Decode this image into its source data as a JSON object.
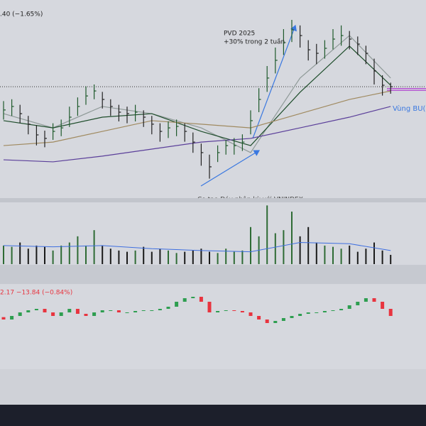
{
  "chart_data": [
    {
      "type": "ohlc",
      "title": ".40 (−1.65%)",
      "annotations": [
        "PVD 2025",
        "+30% trong 2 tuần",
        "Vùng BU(",
        "Co tạo Đáy phân kỳ với VNINDEX"
      ],
      "ylim": [
        20,
        30
      ],
      "close": [
        24.62,
        24.81,
        24.42,
        23.85,
        23.27,
        23.08,
        23.46,
        23.65,
        24.23,
        24.81,
        25.38,
        25.65,
        25.19,
        24.81,
        24.5,
        24.42,
        24.5,
        24.23,
        23.85,
        23.46,
        23.65,
        23.73,
        23.46,
        22.88,
        22.31,
        21.54,
        22.31,
        22.69,
        22.69,
        22.88,
        24.04,
        25.19,
        26.35,
        27.31,
        28.27,
        28.96,
        28.65,
        27.88,
        27.69,
        27.96,
        28.46,
        28.65,
        28.46,
        28.19,
        27.69,
        26.73,
        25.96,
        25.88
      ],
      "high": [
        25.1,
        25.2,
        24.9,
        24.3,
        23.8,
        23.5,
        23.9,
        24.1,
        24.8,
        25.3,
        25.9,
        26.0,
        25.6,
        25.2,
        24.9,
        24.8,
        24.9,
        24.6,
        24.3,
        23.9,
        24.0,
        24.1,
        23.9,
        23.4,
        22.8,
        22.2,
        22.7,
        23.0,
        23.1,
        23.3,
        24.6,
        25.8,
        27.0,
        28.0,
        29.0,
        29.5,
        29.2,
        28.4,
        28.2,
        28.4,
        29.0,
        29.2,
        28.9,
        28.6,
        28.1,
        27.4,
        26.5,
        26.1
      ],
      "low": [
        24.1,
        24.3,
        23.9,
        23.3,
        22.7,
        22.6,
        23.0,
        23.2,
        23.7,
        24.3,
        24.9,
        25.2,
        24.7,
        24.3,
        24.0,
        23.9,
        24.0,
        23.7,
        23.3,
        22.9,
        23.1,
        23.2,
        22.9,
        22.3,
        21.6,
        20.9,
        21.8,
        22.2,
        22.2,
        22.4,
        23.3,
        24.5,
        25.6,
        26.6,
        27.6,
        28.3,
        28.0,
        27.3,
        27.1,
        27.4,
        27.9,
        28.1,
        27.9,
        27.6,
        27.1,
        26.0,
        25.4,
        25.5
      ],
      "up_color": "#1f5a2c",
      "down_color": "#222222",
      "ma_x": [
        0,
        6,
        12,
        18,
        24,
        30,
        36,
        42,
        47
      ],
      "ma": [
        {
          "color": "#8f9a98",
          "values": [
            24.42,
            23.65,
            24.81,
            24.42,
            23.65,
            22.31,
            26.35,
            28.65,
            26.35
          ]
        },
        {
          "color": "#1e4d2b",
          "values": [
            24.04,
            23.65,
            24.23,
            24.42,
            23.46,
            22.69,
            25.58,
            28.08,
            25.96
          ]
        },
        {
          "color": "#a08a60",
          "values": [
            22.69,
            22.88,
            23.46,
            24.04,
            23.85,
            23.65,
            24.42,
            25.19,
            25.65
          ]
        },
        {
          "color": "#5b3f9a",
          "values": [
            21.92,
            21.81,
            22.12,
            22.5,
            22.88,
            23.08,
            23.65,
            24.23,
            24.81
          ]
        }
      ],
      "price_line": 25.88,
      "zone": [
        25.68,
        25.78
      ],
      "zone_color": "#b040d0"
    },
    {
      "type": "bar",
      "ylim": [
        0,
        100
      ],
      "values": [
        30,
        28,
        35,
        25,
        30,
        28,
        22,
        30,
        35,
        45,
        30,
        55,
        30,
        25,
        22,
        20,
        22,
        28,
        20,
        25,
        22,
        18,
        20,
        22,
        25,
        20,
        18,
        25,
        20,
        22,
        60,
        45,
        95,
        50,
        55,
        85,
        45,
        60,
        35,
        30,
        28,
        25,
        30,
        20,
        25,
        35,
        22,
        15
      ],
      "up_color": "#2e6b34",
      "down_color": "#1a1a1a",
      "ma_x": [
        0,
        6,
        12,
        18,
        24,
        30,
        36,
        42,
        47
      ],
      "ma": {
        "color": "#3f6fe0",
        "values": [
          30,
          28,
          30,
          25,
          22,
          20,
          35,
          33,
          22
        ]
      }
    },
    {
      "type": "candlestick",
      "title": "2.17  −13.84 (−0.84%)",
      "ylim": [
        1560,
        1740
      ],
      "open": [
        1670,
        1665,
        1672.5,
        1680,
        1684.5,
        1687.5,
        1680,
        1672.5,
        1680,
        1687.5,
        1677,
        1672.5,
        1680,
        1684.5,
        1684.5,
        1680,
        1680,
        1683,
        1684.5,
        1684.5,
        1687.5,
        1692,
        1702.5,
        1710,
        1713,
        1702.5,
        1680,
        1683,
        1684.5,
        1683,
        1680,
        1672.5,
        1665,
        1657.5,
        1662,
        1668,
        1672.5,
        1677,
        1680,
        1680,
        1683,
        1684.5,
        1687.5,
        1695,
        1702.5,
        1710,
        1702.5,
        1687.5
      ],
      "close": [
        1665,
        1672.5,
        1680,
        1684.5,
        1687.5,
        1680,
        1672.5,
        1680,
        1687.5,
        1677,
        1672.5,
        1680,
        1684.5,
        1684.5,
        1680,
        1680,
        1683,
        1684.5,
        1684.5,
        1687.5,
        1692,
        1702.5,
        1710,
        1713,
        1702.5,
        1680,
        1683,
        1684.5,
        1683,
        1680,
        1672.5,
        1665,
        1657.5,
        1662,
        1668,
        1672.5,
        1677,
        1680,
        1680,
        1683,
        1684.5,
        1687.5,
        1695,
        1702.5,
        1710,
        1702.5,
        1687.5,
        1672.5
      ],
      "up_color": "#2e9e50",
      "down_color": "#e8343f"
    }
  ]
}
